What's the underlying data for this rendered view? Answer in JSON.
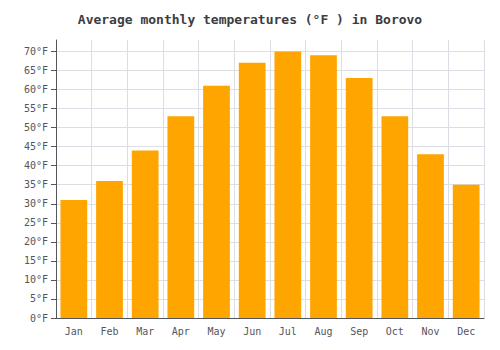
{
  "chart_data": {
    "type": "bar",
    "title": "Average monthly temperatures (°F ) in Borovo",
    "categories": [
      "Jan",
      "Feb",
      "Mar",
      "Apr",
      "May",
      "Jun",
      "Jul",
      "Aug",
      "Sep",
      "Oct",
      "Nov",
      "Dec"
    ],
    "values": [
      31,
      36,
      44,
      53,
      61,
      67,
      70,
      69,
      63,
      53,
      43,
      35
    ],
    "color": "#FFA500",
    "ylim": [
      0,
      73
    ],
    "yticks": [
      {
        "value": 0,
        "label": "0°F"
      },
      {
        "value": 5,
        "label": "5°F"
      },
      {
        "value": 10,
        "label": "10°F"
      },
      {
        "value": 15,
        "label": "15°F"
      },
      {
        "value": 20,
        "label": "20°F"
      },
      {
        "value": 25,
        "label": "25°F"
      },
      {
        "value": 30,
        "label": "30°F"
      },
      {
        "value": 35,
        "label": "35°F"
      },
      {
        "value": 40,
        "label": "40°F"
      },
      {
        "value": 45,
        "label": "45°F"
      },
      {
        "value": 50,
        "label": "50°F"
      },
      {
        "value": 55,
        "label": "55°F"
      },
      {
        "value": 60,
        "label": "60°F"
      },
      {
        "value": 65,
        "label": "65°F"
      },
      {
        "value": 70,
        "label": "70°F"
      }
    ],
    "grid": true
  }
}
